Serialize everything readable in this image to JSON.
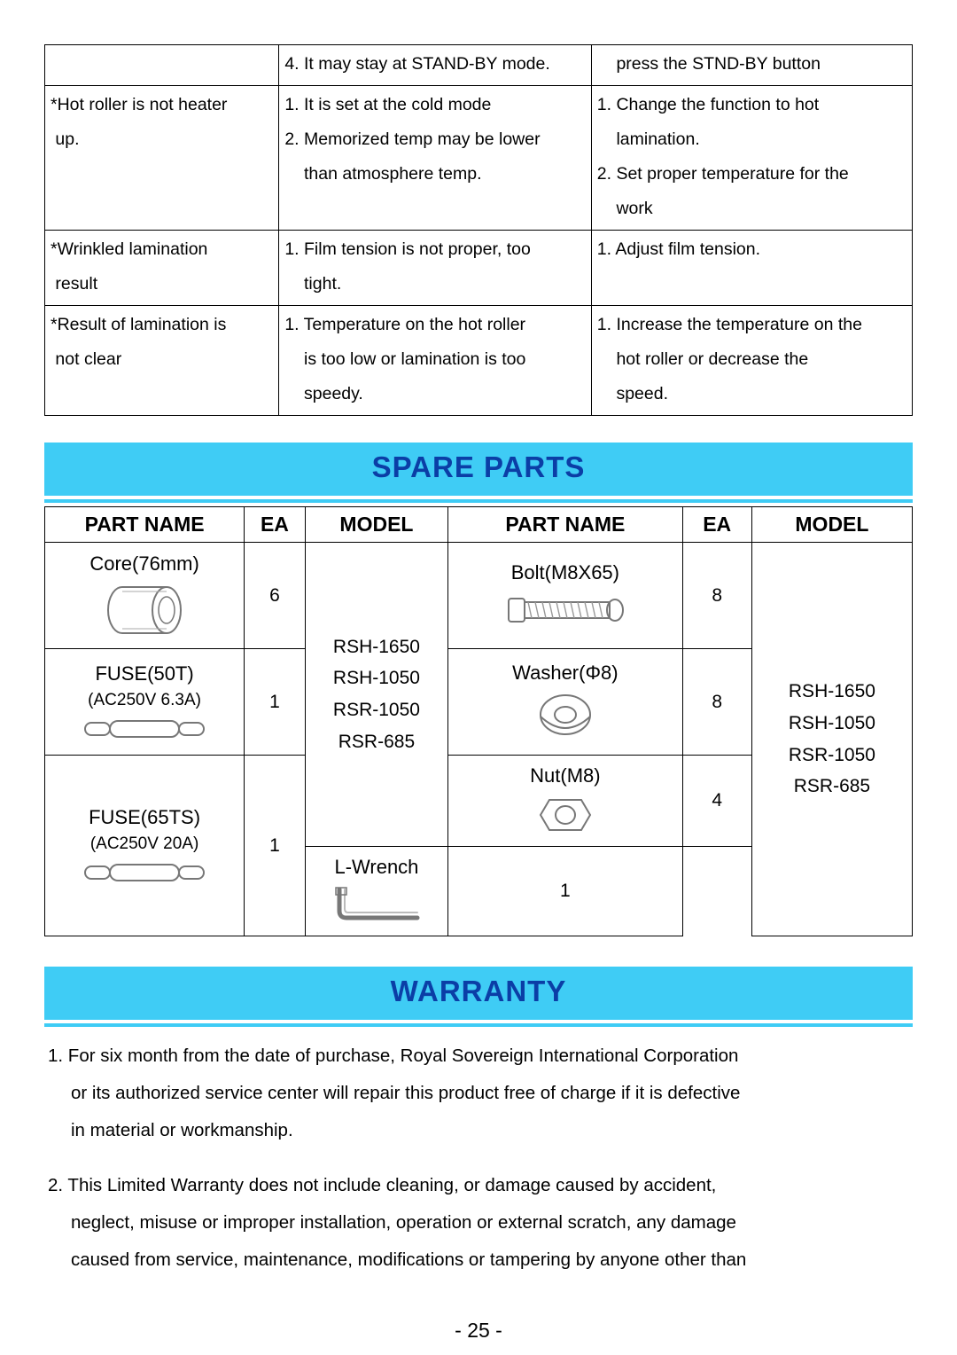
{
  "troubleshoot": {
    "rows": [
      {
        "c1": "",
        "c2": "4. It may stay at STAND-BY mode.",
        "c3": "    press the STND-BY button"
      },
      {
        "c1": "*Hot roller is not heater\n up.",
        "c2": "1. It is set at the cold mode\n2. Memorized temp may be lower\n    than atmosphere temp.",
        "c3": "1. Change the function to hot\n    lamination.\n2. Set proper temperature for the\n    work"
      },
      {
        "c1": "*Wrinkled lamination\n result",
        "c2": "1. Film tension is not proper, too\n    tight.",
        "c3": "1. Adjust film tension."
      },
      {
        "c1": "*Result of lamination is\n not clear",
        "c2": "1. Temperature on the hot roller\n    is too low or lamination is too\n    speedy.",
        "c3": "1. Increase the temperature on the\n    hot roller or decrease the\n    speed."
      }
    ]
  },
  "sections": {
    "spare_parts_title": "SPARE  PARTS",
    "warranty_title": "WARRANTY"
  },
  "spare_parts": {
    "headers": [
      "PART NAME",
      "EA",
      "MODEL",
      "PART NAME",
      "EA",
      "MODEL"
    ],
    "model_list": "RSH-1650\nRSH-1050\nRSR-1050\nRSR-685",
    "left": [
      {
        "name": "Core(76mm)",
        "sub": "",
        "ea": "6",
        "icon": "core"
      },
      {
        "name": "FUSE(50T)",
        "sub": "(AC250V 6.3A)",
        "ea": "1",
        "icon": "fuse"
      },
      {
        "name": "FUSE(65TS)",
        "sub": "(AC250V 20A)",
        "ea": "1",
        "icon": "fuse"
      }
    ],
    "right": [
      {
        "name": "Bolt(M8X65)",
        "ea": "8",
        "icon": "bolt"
      },
      {
        "name": "Washer(Φ8)",
        "ea": "8",
        "icon": "washer"
      },
      {
        "name": "Nut(M8)",
        "ea": "4",
        "icon": "nut"
      },
      {
        "name": "L-Wrench",
        "ea": "1",
        "icon": "wrench"
      }
    ]
  },
  "warranty": {
    "items": [
      {
        "num": "1.",
        "lines": [
          "For six month from the date of purchase, Royal Sovereign International Corporation",
          "or its authorized service center will repair this product free of charge if it is defective",
          "in material or workmanship."
        ]
      },
      {
        "num": "2.",
        "lines": [
          "This Limited Warranty does not include cleaning, or damage caused by accident,",
          "neglect, misuse or improper installation, operation or external scratch, any damage",
          "caused from service, maintenance, modifications or tampering by anyone other than"
        ]
      }
    ]
  },
  "page_number": "- 25 -",
  "colors": {
    "bar_bg": "#3fccf5",
    "title_color": "#0b3ea6",
    "text": "#000000",
    "page_bg": "#ffffff"
  }
}
